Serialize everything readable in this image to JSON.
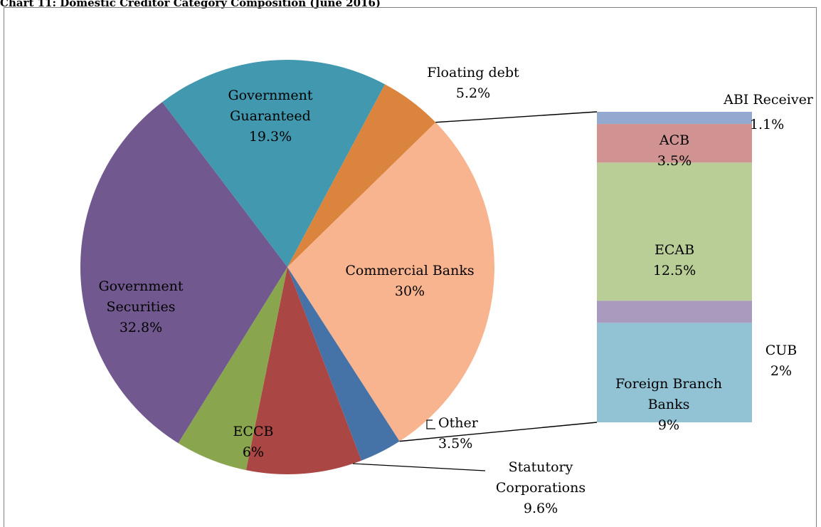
{
  "title": "Chart 11: Domestic Creditor Category Composition (June 2016)",
  "chart_data": {
    "type": "bar-of-pie",
    "title": "Chart 11: Domestic Creditor Category Composition (June 2016)",
    "pie": [
      {
        "name": "Commercial Banks",
        "lines": [
          "Commercial Banks"
        ],
        "value": 30,
        "label": "30%",
        "color": "#F8B48F"
      },
      {
        "name": "Other",
        "lines": [
          "Other"
        ],
        "value": 3.5,
        "label": "3.5%",
        "color": "#4572A7"
      },
      {
        "name": "Statutory Corporations",
        "lines": [
          "Statutory",
          "Corporations"
        ],
        "value": 9.6,
        "label": "9.6%",
        "color": "#AA4643"
      },
      {
        "name": "ECCB",
        "lines": [
          "ECCB"
        ],
        "value": 6,
        "label": "6%",
        "color": "#89A54E"
      },
      {
        "name": "Government Securities",
        "lines": [
          "Government",
          "Securities"
        ],
        "value": 32.8,
        "label": "32.8%",
        "color": "#71588F"
      },
      {
        "name": "Government Guaranteed",
        "lines": [
          "Government",
          "Guaranteed"
        ],
        "value": 19.3,
        "label": "19.3%",
        "color": "#4198AF"
      },
      {
        "name": "Floating debt",
        "lines": [
          "Floating debt"
        ],
        "value": 5.2,
        "label": "5.2%",
        "color": "#DB843D"
      }
    ],
    "bar": [
      {
        "name": "ABI Receiver",
        "lines": [
          "ABI Receiver"
        ],
        "value": 1.1,
        "label": "1.1%",
        "color": "#93A9CF"
      },
      {
        "name": "ACB",
        "lines": [
          "ACB"
        ],
        "value": 3.5,
        "label": "3.5%",
        "color": "#D19392"
      },
      {
        "name": "ECAB",
        "lines": [
          "ECAB"
        ],
        "value": 12.5,
        "label": "12.5%",
        "color": "#B9CD96"
      },
      {
        "name": "CUB",
        "lines": [
          "CUB"
        ],
        "value": 2,
        "label": "2%",
        "color": "#A99BBD"
      },
      {
        "name": "Foreign Branch Banks",
        "lines": [
          "Foreign Branch",
          "Banks"
        ],
        "value": 9,
        "label": "9%",
        "color": "#92C3D4"
      }
    ]
  }
}
